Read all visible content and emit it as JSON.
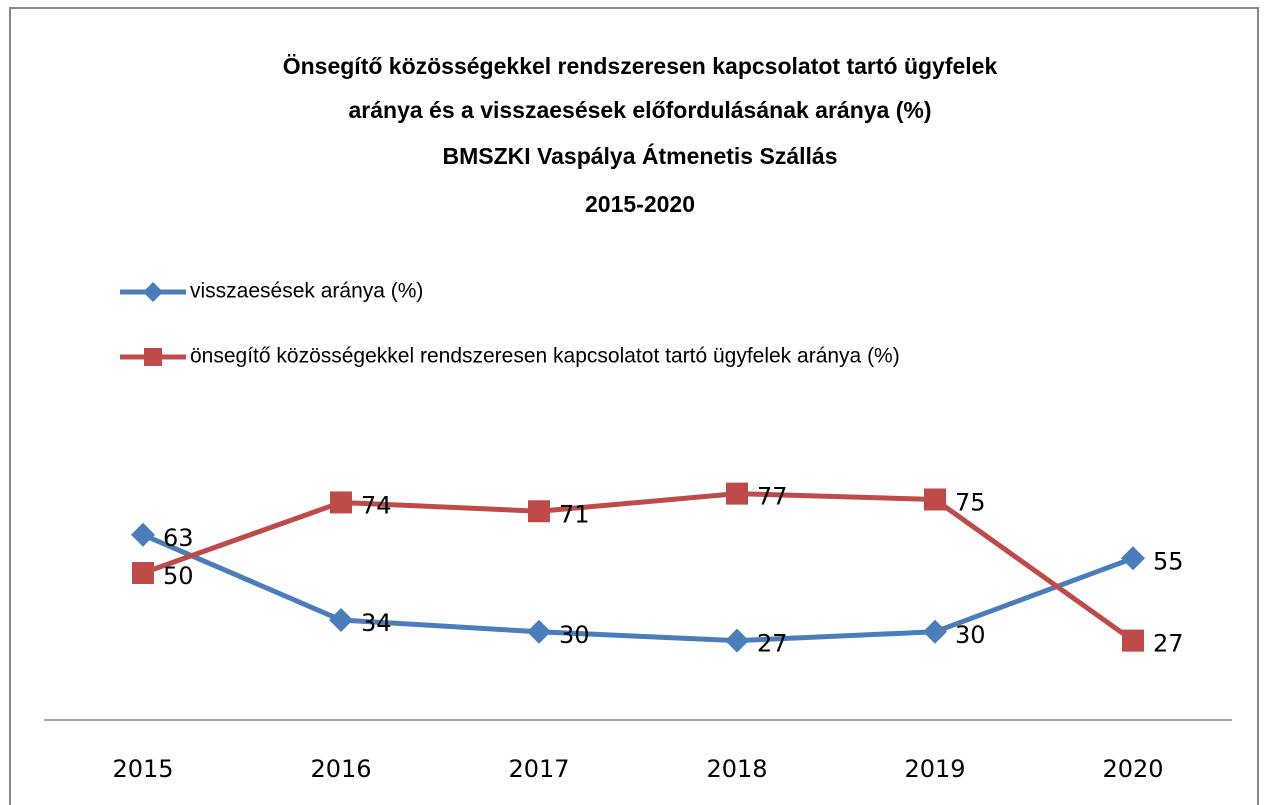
{
  "chart_data": {
    "type": "line",
    "title": [
      "Önsegítő közösségekkel rendszeresen kapcsolatot tartó ügyfelek",
      "aránya és a visszaesések előfordulásának aránya  (%)",
      "BMSZKI Vaspálya Átmenetis Szállás",
      "2015-2020"
    ],
    "categories": [
      "2015",
      "2016",
      "2017",
      "2018",
      "2019",
      "2020"
    ],
    "series": [
      {
        "name": "visszaesések aránya  (%)",
        "color": "#4a7ebb",
        "marker": "diamond",
        "values": [
          63,
          34,
          30,
          27,
          30,
          55
        ]
      },
      {
        "name": "önsegítő közösségekkel rendszeresen  kapcsolatot tartó ügyfelek  aránya (%)",
        "color": "#be4b48",
        "marker": "square",
        "values": [
          50,
          74,
          71,
          77,
          75,
          27
        ]
      }
    ],
    "ylim": [
      0,
      100
    ],
    "legend": "top-left",
    "grid": false
  }
}
